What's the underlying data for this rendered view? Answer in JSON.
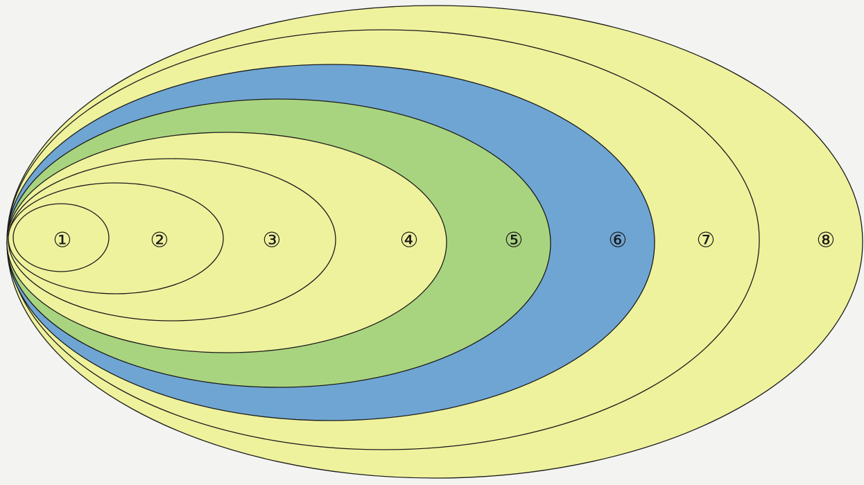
{
  "diagram": {
    "type": "nested-ellipses",
    "colors": {
      "background": "#f3f3f1",
      "yellow": "#eff29d",
      "green": "#a9d47f",
      "blue": "#6fa5d2",
      "outline": "#1a1a1a"
    },
    "regions": [
      {
        "label": "⑧",
        "fill": "#eff29d"
      },
      {
        "label": "⑦",
        "fill": "#eff29d"
      },
      {
        "label": "⑥",
        "fill": "#6fa5d2"
      },
      {
        "label": "⑤",
        "fill": "#a9d47f"
      },
      {
        "label": "④",
        "fill": "#eff29d"
      },
      {
        "label": "③",
        "fill": "#eff29d"
      },
      {
        "label": "②",
        "fill": "#eff29d"
      },
      {
        "label": "①",
        "fill": "#eff29d"
      }
    ]
  }
}
